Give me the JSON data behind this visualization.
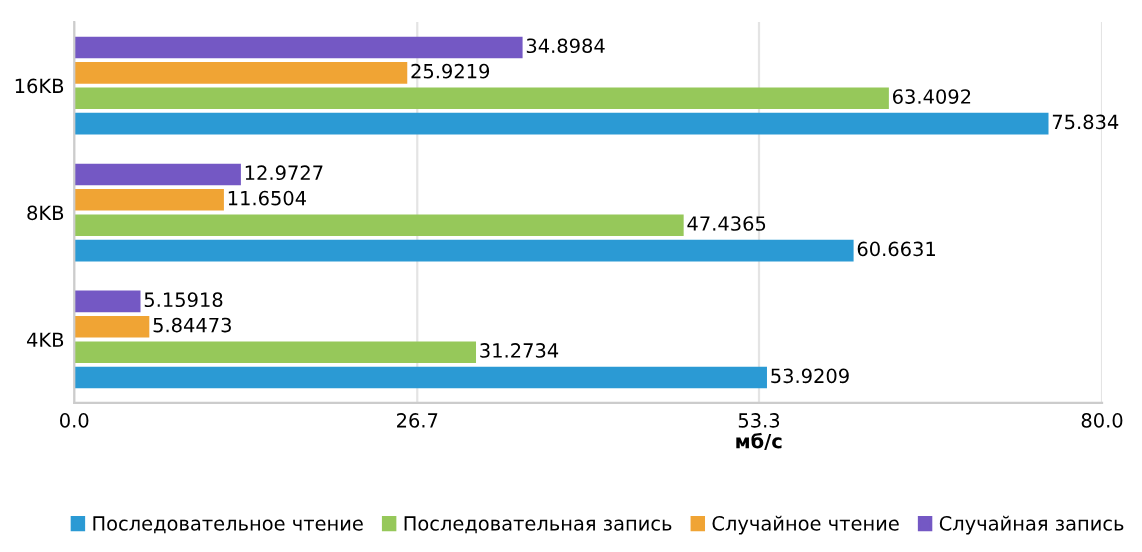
{
  "chart_data": {
    "type": "bar",
    "orientation": "horizontal",
    "xlabel": "мб/с",
    "categories": [
      "16KB",
      "8KB",
      "4KB"
    ],
    "series": [
      {
        "name": "Последовательное чтение",
        "color": "#2b9ad4",
        "values": [
          75.834,
          60.6631,
          53.9209
        ]
      },
      {
        "name": "Последовательная запись",
        "color": "#96c85a",
        "values": [
          63.4092,
          47.4365,
          31.2734
        ]
      },
      {
        "name": "Случайное чтение",
        "color": "#f0a434",
        "values": [
          25.9219,
          11.6504,
          5.84473
        ]
      },
      {
        "name": "Случайная запись",
        "color": "#7458c4",
        "values": [
          34.8984,
          12.9727,
          5.15918
        ]
      }
    ],
    "xlim": [
      0,
      80
    ],
    "xticks": [
      {
        "value": 0,
        "label": "0.0"
      },
      26.7,
      53.3,
      {
        "value": 80,
        "label": "80.0"
      }
    ],
    "grid": "x",
    "legend": "bottom",
    "data_labels": true
  }
}
